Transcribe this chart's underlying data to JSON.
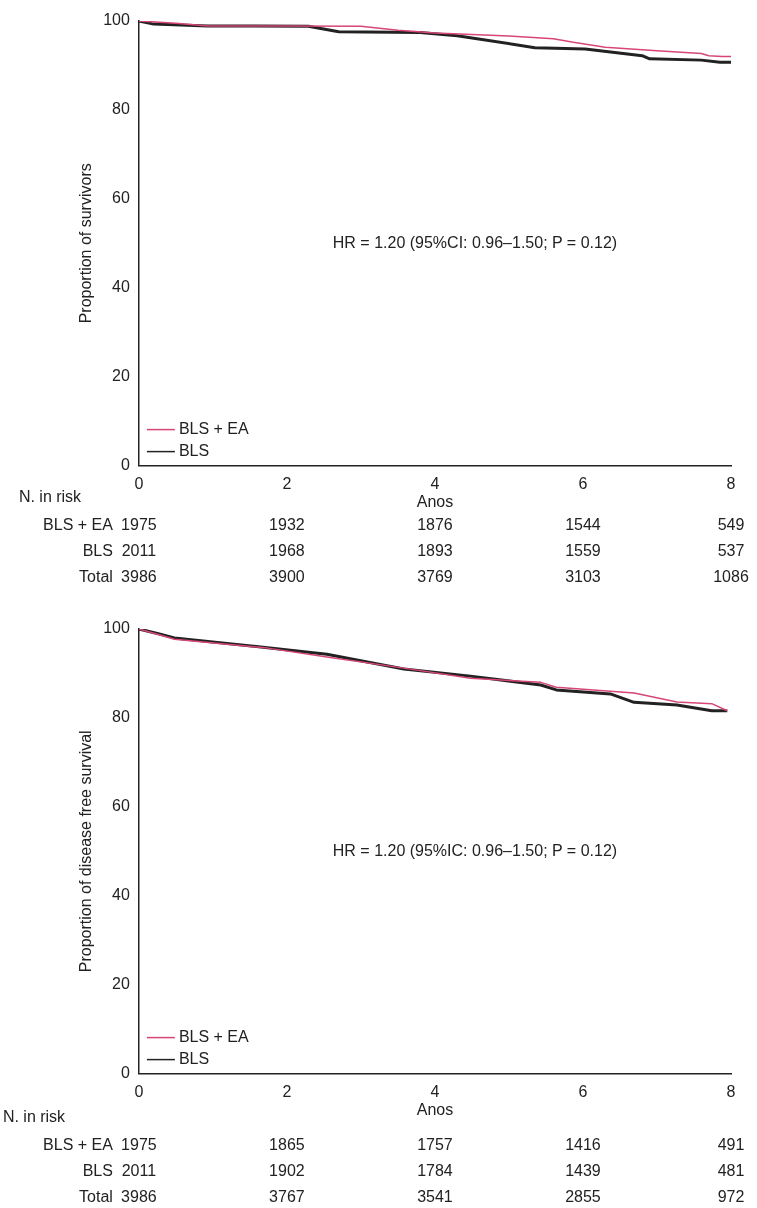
{
  "chart_data": [
    {
      "type": "line",
      "xlabel": "Anos",
      "ylabel": "Proportion of survivors",
      "xlim": [
        0,
        8
      ],
      "ylim": [
        0,
        100
      ],
      "xticks": [
        0,
        2,
        4,
        6,
        8
      ],
      "yticks": [
        0,
        20,
        40,
        60,
        80,
        100
      ],
      "grid": false,
      "legend": "bottom left",
      "marker": "none",
      "line_style": "solid",
      "series": [
        {
          "name": "BLS + EA",
          "color": "#d6467a",
          "x": [
            0,
            0.5,
            0.93,
            2,
            3,
            3.5,
            4,
            5,
            5.6,
            5.87,
            6.3,
            7,
            7.6,
            7.7,
            7.88,
            8
          ],
          "values": [
            100,
            99.5,
            98.9,
            98.9,
            98.8,
            97.9,
            97.3,
            96.6,
            96,
            95.2,
            94.1,
            93.3,
            92.7,
            92.2,
            92,
            92
          ]
        },
        {
          "name": "BLS",
          "color": "#222222",
          "x": [
            0,
            0.2,
            0.93,
            2.29,
            2.7,
            3.8,
            4.3,
            5.35,
            6.03,
            6.8,
            6.9,
            7.6,
            7.85,
            8
          ],
          "values": [
            100,
            99.3,
            98.9,
            98.8,
            97.6,
            97.4,
            96.7,
            94,
            93.7,
            92.2,
            91.5,
            91.2,
            90.7,
            90.7
          ]
        }
      ],
      "annotations": [
        "HR = 1.20 (95%CI: 0.96–1.50; P = 0.12)",
        "N. in risk",
        "BLS + EA",
        "1975",
        "1932",
        "1876",
        "1544",
        "549",
        "BLS",
        "2011",
        "1968",
        "1893",
        "1559",
        "537",
        "Total",
        "3986",
        "3900",
        "3769",
        "3103",
        "1086"
      ]
    },
    {
      "type": "line",
      "xlabel": "Anos",
      "ylabel": "Proportion of disease free survival",
      "xlim": [
        0,
        8
      ],
      "ylim": [
        0,
        100
      ],
      "xticks": [
        0,
        2,
        4,
        6,
        8
      ],
      "yticks": [
        0,
        20,
        40,
        60,
        80,
        100
      ],
      "grid": false,
      "legend": "bottom left",
      "marker": "none",
      "line_style": "solid",
      "series": [
        {
          "name": "BLS + EA",
          "color": "#d6467a",
          "x": [
            0,
            0.25,
            0.48,
            1.74,
            2.54,
            3.58,
            4.48,
            5.43,
            5.64,
            6.37,
            6.69,
            7.27,
            7.74,
            7.95
          ],
          "values": [
            100,
            98.8,
            97.7,
            95.7,
            93.7,
            91.2,
            88.9,
            88,
            86.9,
            86,
            85.6,
            83.6,
            83.2,
            81.6
          ]
        },
        {
          "name": "BLS",
          "color": "#222222",
          "x": [
            0,
            0.25,
            0.48,
            1.74,
            2.54,
            3.58,
            4.48,
            5.43,
            5.64,
            6.37,
            6.69,
            7.27,
            7.74,
            7.95
          ],
          "values": [
            100,
            99,
            98,
            95.8,
            94.3,
            91,
            89.4,
            87.4,
            86.3,
            85.4,
            83.5,
            82.9,
            81.6,
            81.6
          ]
        }
      ],
      "annotations": [
        "HR = 1.20 (95%IC: 0.96–1.50; P = 0.12)",
        "N. in risk",
        "BLS + EA",
        "1975",
        "1865",
        "1757",
        "1416",
        "491",
        "BLS",
        "2011",
        "1902",
        "1784",
        "1439",
        "481",
        "Total",
        "3986",
        "3767",
        "3541",
        "2855",
        "972"
      ]
    }
  ]
}
